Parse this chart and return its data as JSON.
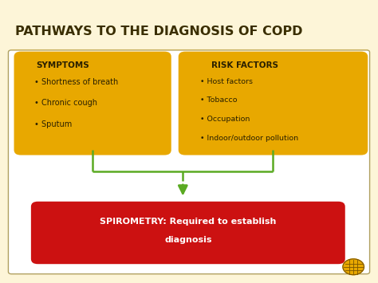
{
  "title": "PATHWAYS TO THE DIAGNOSIS OF COPD",
  "title_color": "#3a2e00",
  "title_fontsize": 11.5,
  "bg_color": "#fdf5d8",
  "inner_bg_color": "#ffffff",
  "box_color": "#e8a800",
  "red_box_color": "#cc1111",
  "arrow_color": "#5aaa22",
  "border_color": "#c8b060",
  "symptoms_title": "SYMPTOMS",
  "symptoms_items": [
    "• Shortness of breath",
    "• Chronic cough",
    "• Sputum"
  ],
  "risk_title": "RISK FACTORS",
  "risk_items": [
    "• Host factors",
    "• Tobacco",
    "• Occupation",
    "• Indoor/outdoor pollution"
  ],
  "spiro_line1": "SPIROMETRY: Required to establish",
  "spiro_line2": "diagnosis",
  "text_color": "#2a2000",
  "white_text": "#ffffff"
}
